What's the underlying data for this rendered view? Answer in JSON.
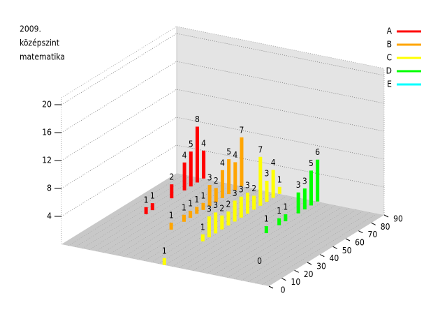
{
  "chart_data": {
    "type": "bar3d",
    "title_lines": [
      "2009.",
      "középszint",
      "matematika"
    ],
    "xlim": [
      0,
      90
    ],
    "xticks": [
      0,
      10,
      20,
      30,
      40,
      50,
      60,
      70,
      80,
      90
    ],
    "zlim": [
      0,
      21
    ],
    "zticks": [
      4,
      8,
      12,
      16,
      20
    ],
    "grid": true,
    "legend": "top-right",
    "series": [
      {
        "name": "A",
        "color": "#ff0000",
        "x": [
          45,
          50,
          65,
          75,
          80,
          85,
          90
        ],
        "values": [
          1,
          1,
          2,
          4,
          5,
          8,
          4
        ]
      },
      {
        "name": "B",
        "color": "#ffa500",
        "x": [
          35,
          45,
          50,
          55,
          60,
          65,
          70,
          75,
          80,
          85,
          90
        ],
        "values": [
          1,
          1,
          1,
          1,
          1,
          3,
          2,
          4,
          5,
          4,
          7
        ]
      },
      {
        "name": "C",
        "color": "#ffff00",
        "x": [
          0,
          30,
          35,
          40,
          45,
          50,
          55,
          60,
          65,
          70,
          75,
          80,
          85,
          90
        ],
        "values": [
          1,
          1,
          3,
          3,
          2,
          2,
          3,
          3,
          3,
          2,
          7,
          3,
          4,
          1
        ]
      },
      {
        "name": "D",
        "color": "#00ff00",
        "x": [
          50,
          60,
          65,
          75,
          80,
          85,
          90
        ],
        "values": [
          1,
          1,
          1,
          3,
          3,
          5,
          6
        ]
      },
      {
        "name": "E",
        "color": "#00ffff",
        "x": [
          15
        ],
        "values": [
          0
        ]
      }
    ]
  }
}
